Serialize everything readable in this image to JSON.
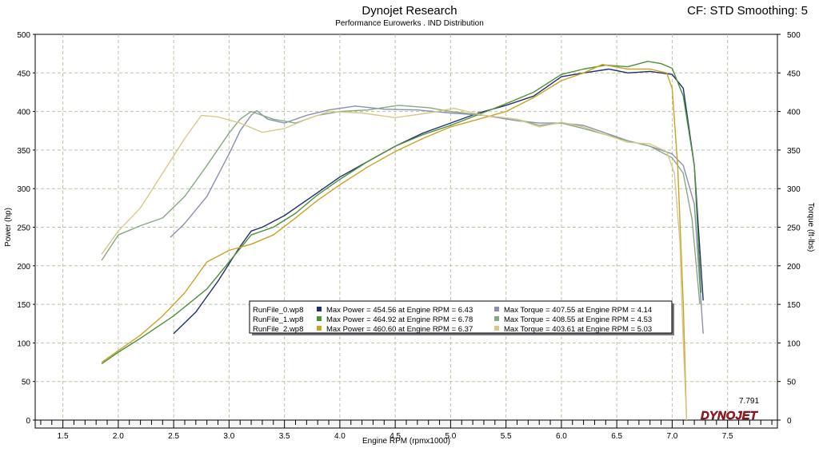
{
  "header": {
    "title": "Dynojet Research",
    "subtitle": "Performance Eurowerks . IND Distribution",
    "settings": "CF: STD Smoothing: 5"
  },
  "colors": {
    "run0_power": "#1f2f6e",
    "run0_torque": "#8a8fb0",
    "run1_power": "#4f8f3a",
    "run1_torque": "#86a882",
    "run2_power": "#c9a227",
    "run2_torque": "#d7c98a",
    "grid": "#b9c3a3",
    "brand": "#c0121a"
  },
  "brand": {
    "logo_text": "DYNOJET",
    "cursor_value": "7.791"
  },
  "chart_data": {
    "type": "line",
    "xlabel": "Engine RPM (rpmx1000)",
    "ylabel_left": "Power (hp)",
    "ylabel_right": "Torque (ft-lbs)",
    "xlim": [
      1.25,
      7.95
    ],
    "ylim": [
      0,
      500
    ],
    "x_ticks": [
      "1.5",
      "2.0",
      "2.5",
      "3.0",
      "3.5",
      "4.0",
      "4.5",
      "5.0",
      "5.5",
      "6.0",
      "6.5",
      "7.0",
      "7.5"
    ],
    "y_ticks": [
      "0",
      "50",
      "100",
      "150",
      "200",
      "250",
      "300",
      "350",
      "400",
      "450",
      "500"
    ],
    "grid": true,
    "legend_position": "center",
    "legend": [
      {
        "run": "RunFile_0.wp8",
        "power": "Max Power = 454.56 at Engine RPM = 6.43",
        "torque": "Max Torque = 407.55 at Engine RPM = 4.14"
      },
      {
        "run": "RunFile_1.wp8",
        "power": "Max Power = 464.92 at Engine RPM = 6.78",
        "torque": "Max Torque = 408.55 at Engine RPM = 4.53"
      },
      {
        "run": "RunFile_2.wp8",
        "power": "Max Power = 460.60 at Engine RPM = 6.37",
        "torque": "Max Torque = 403.61 at Engine RPM = 5.03"
      }
    ],
    "series": [
      {
        "name": "RunFile_0.wp8",
        "kind": "power",
        "points": [
          [
            2.5,
            112
          ],
          [
            2.7,
            140
          ],
          [
            2.9,
            180
          ],
          [
            3.1,
            225
          ],
          [
            3.2,
            245
          ],
          [
            3.3,
            250
          ],
          [
            3.5,
            265
          ],
          [
            3.75,
            290
          ],
          [
            4.0,
            315
          ],
          [
            4.25,
            335
          ],
          [
            4.5,
            355
          ],
          [
            4.75,
            372
          ],
          [
            5.0,
            385
          ],
          [
            5.25,
            398
          ],
          [
            5.5,
            408
          ],
          [
            5.75,
            420
          ],
          [
            6.0,
            445
          ],
          [
            6.2,
            450
          ],
          [
            6.43,
            455
          ],
          [
            6.6,
            450
          ],
          [
            6.8,
            452
          ],
          [
            7.0,
            448
          ],
          [
            7.1,
            430
          ],
          [
            7.2,
            330
          ],
          [
            7.28,
            155
          ]
        ]
      },
      {
        "run": "RunFile_0.wp8",
        "kind": "torque",
        "points": [
          [
            2.47,
            237
          ],
          [
            2.6,
            255
          ],
          [
            2.8,
            290
          ],
          [
            3.0,
            345
          ],
          [
            3.1,
            375
          ],
          [
            3.2,
            395
          ],
          [
            3.25,
            401
          ],
          [
            3.35,
            390
          ],
          [
            3.5,
            385
          ],
          [
            3.7,
            395
          ],
          [
            3.9,
            402
          ],
          [
            4.14,
            407
          ],
          [
            4.4,
            403
          ],
          [
            4.7,
            402
          ],
          [
            5.0,
            398
          ],
          [
            5.3,
            395
          ],
          [
            5.6,
            388
          ],
          [
            5.8,
            385
          ],
          [
            6.0,
            385
          ],
          [
            6.2,
            382
          ],
          [
            6.4,
            372
          ],
          [
            6.6,
            362
          ],
          [
            6.8,
            355
          ],
          [
            7.0,
            345
          ],
          [
            7.1,
            330
          ],
          [
            7.2,
            280
          ],
          [
            7.28,
            112
          ]
        ]
      },
      {
        "run": "RunFile_1.wp8",
        "kind": "power",
        "points": [
          [
            1.85,
            73
          ],
          [
            2.0,
            88
          ],
          [
            2.2,
            106
          ],
          [
            2.5,
            135
          ],
          [
            2.8,
            170
          ],
          [
            3.0,
            205
          ],
          [
            3.2,
            240
          ],
          [
            3.4,
            250
          ],
          [
            3.6,
            268
          ],
          [
            3.8,
            292
          ],
          [
            4.0,
            312
          ],
          [
            4.25,
            335
          ],
          [
            4.5,
            355
          ],
          [
            4.75,
            370
          ],
          [
            5.0,
            382
          ],
          [
            5.25,
            396
          ],
          [
            5.5,
            410
          ],
          [
            5.75,
            425
          ],
          [
            6.0,
            448
          ],
          [
            6.2,
            455
          ],
          [
            6.4,
            460
          ],
          [
            6.6,
            458
          ],
          [
            6.78,
            465
          ],
          [
            6.9,
            462
          ],
          [
            7.0,
            456
          ],
          [
            7.1,
            420
          ],
          [
            7.2,
            330
          ],
          [
            7.26,
            165
          ]
        ]
      },
      {
        "run": "RunFile_1.wp8",
        "kind": "torque",
        "points": [
          [
            1.85,
            207
          ],
          [
            2.0,
            240
          ],
          [
            2.2,
            252
          ],
          [
            2.4,
            262
          ],
          [
            2.6,
            290
          ],
          [
            2.8,
            330
          ],
          [
            3.0,
            372
          ],
          [
            3.1,
            390
          ],
          [
            3.2,
            400
          ],
          [
            3.4,
            390
          ],
          [
            3.6,
            385
          ],
          [
            3.8,
            395
          ],
          [
            4.0,
            400
          ],
          [
            4.25,
            402
          ],
          [
            4.53,
            408
          ],
          [
            4.8,
            405
          ],
          [
            5.0,
            400
          ],
          [
            5.3,
            395
          ],
          [
            5.6,
            390
          ],
          [
            5.8,
            382
          ],
          [
            6.0,
            385
          ],
          [
            6.2,
            378
          ],
          [
            6.4,
            370
          ],
          [
            6.6,
            362
          ],
          [
            6.8,
            355
          ],
          [
            7.0,
            340
          ],
          [
            7.1,
            320
          ],
          [
            7.18,
            260
          ],
          [
            7.25,
            150
          ]
        ]
      },
      {
        "run": "RunFile_2.wp8",
        "kind": "power",
        "points": [
          [
            1.85,
            75
          ],
          [
            2.0,
            90
          ],
          [
            2.2,
            110
          ],
          [
            2.4,
            135
          ],
          [
            2.6,
            165
          ],
          [
            2.8,
            205
          ],
          [
            3.0,
            220
          ],
          [
            3.2,
            228
          ],
          [
            3.4,
            240
          ],
          [
            3.6,
            262
          ],
          [
            3.8,
            285
          ],
          [
            4.0,
            305
          ],
          [
            4.25,
            328
          ],
          [
            4.5,
            348
          ],
          [
            4.75,
            365
          ],
          [
            5.0,
            380
          ],
          [
            5.25,
            390
          ],
          [
            5.5,
            400
          ],
          [
            5.75,
            418
          ],
          [
            6.0,
            440
          ],
          [
            6.2,
            450
          ],
          [
            6.37,
            461
          ],
          [
            6.6,
            455
          ],
          [
            6.8,
            455
          ],
          [
            6.95,
            450
          ],
          [
            7.0,
            430
          ],
          [
            7.05,
            330
          ],
          [
            7.1,
            150
          ],
          [
            7.13,
            0
          ]
        ]
      },
      {
        "run": "RunFile_2.wp8",
        "kind": "torque",
        "points": [
          [
            1.85,
            215
          ],
          [
            2.0,
            245
          ],
          [
            2.2,
            275
          ],
          [
            2.4,
            320
          ],
          [
            2.6,
            365
          ],
          [
            2.75,
            395
          ],
          [
            2.9,
            393
          ],
          [
            3.1,
            385
          ],
          [
            3.3,
            373
          ],
          [
            3.5,
            378
          ],
          [
            3.7,
            390
          ],
          [
            3.9,
            400
          ],
          [
            4.2,
            398
          ],
          [
            4.5,
            392
          ],
          [
            4.8,
            398
          ],
          [
            5.03,
            404
          ],
          [
            5.3,
            395
          ],
          [
            5.6,
            390
          ],
          [
            5.8,
            380
          ],
          [
            6.0,
            386
          ],
          [
            6.2,
            380
          ],
          [
            6.4,
            370
          ],
          [
            6.6,
            360
          ],
          [
            6.8,
            358
          ],
          [
            6.95,
            348
          ],
          [
            7.02,
            320
          ],
          [
            7.07,
            230
          ],
          [
            7.1,
            100
          ],
          [
            7.13,
            0
          ]
        ]
      }
    ]
  }
}
